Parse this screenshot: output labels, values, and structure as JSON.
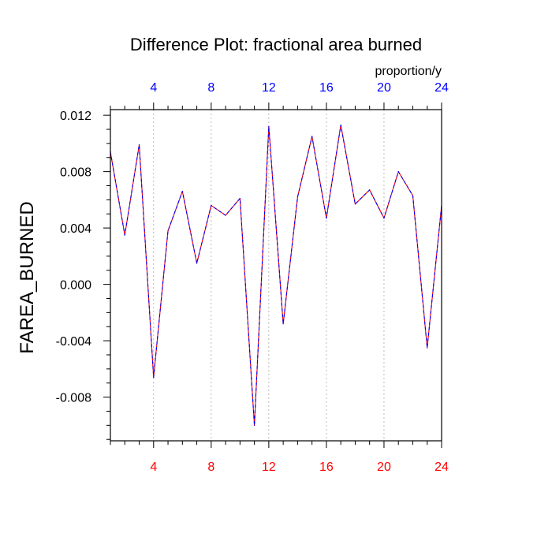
{
  "colors": {
    "bottom_ticks": "#ff0000",
    "top_ticks": "#0000ff",
    "line_a": "#ff0000",
    "line_b": "#0000ff",
    "grid": "#aaaaaa",
    "axes": "#000000"
  },
  "chart_data": {
    "type": "line",
    "title": "Difference Plot: fractional area burned",
    "units": "proportion/y",
    "ylabel": "FAREA_BURNED",
    "xlabel": "",
    "xlim": [
      1,
      24
    ],
    "ylim": [
      -0.0111,
      0.0124
    ],
    "x_ticks": [
      4,
      8,
      12,
      16,
      20,
      24
    ],
    "x_tick_labels": [
      "4",
      "8",
      "12",
      "16",
      "20",
      "24"
    ],
    "y_ticks": [
      -0.008,
      -0.004,
      0.0,
      0.004,
      0.008,
      0.012
    ],
    "y_tick_labels": [
      "-0.008",
      "-0.004",
      "0.000",
      "0.004",
      "0.008",
      "0.012"
    ],
    "grid": "vertical dashed at x ticks",
    "x": [
      1,
      2,
      3,
      4,
      5,
      6,
      7,
      8,
      9,
      10,
      11,
      12,
      13,
      14,
      15,
      16,
      17,
      18,
      19,
      20,
      21,
      22,
      23,
      24
    ],
    "series": [
      {
        "values": [
          0.0094,
          0.0035,
          0.0099,
          -0.0066,
          0.0038,
          0.0066,
          0.0015,
          0.0056,
          0.0049,
          0.0061,
          -0.01,
          0.0112,
          -0.0028,
          0.0062,
          0.0105,
          0.0047,
          0.0113,
          0.0057,
          0.0067,
          0.0047,
          0.008,
          0.0063,
          -0.0045,
          0.0056
        ]
      },
      {
        "values": [
          0.0094,
          0.0035,
          0.0099,
          -0.0066,
          0.0038,
          0.0066,
          0.0015,
          0.0056,
          0.0049,
          0.0061,
          -0.01,
          0.0112,
          -0.0028,
          0.0062,
          0.0105,
          0.0047,
          0.0113,
          0.0057,
          0.0067,
          0.0047,
          0.008,
          0.0063,
          -0.0045,
          0.0056
        ]
      }
    ]
  }
}
